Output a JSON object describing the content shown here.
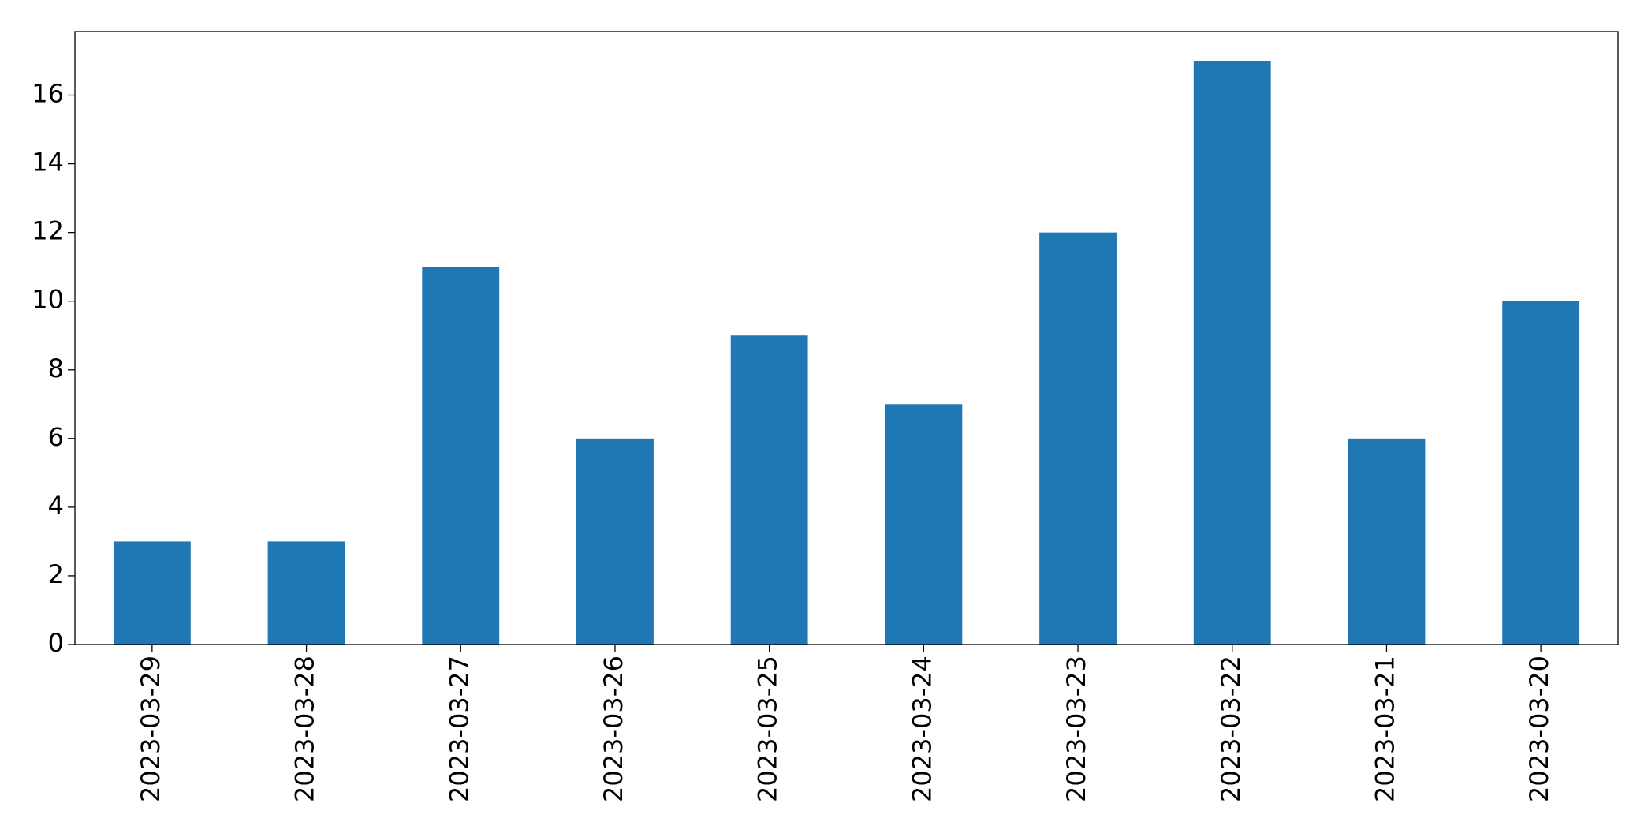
{
  "chart_data": {
    "type": "bar",
    "categories": [
      "2023-03-29",
      "2023-03-28",
      "2023-03-27",
      "2023-03-26",
      "2023-03-25",
      "2023-03-24",
      "2023-03-23",
      "2023-03-22",
      "2023-03-21",
      "2023-03-20"
    ],
    "values": [
      3,
      3,
      11,
      6,
      9,
      7,
      12,
      17,
      6,
      10
    ],
    "color": "#1f77b4",
    "ylim": [
      0,
      17.85
    ],
    "yticks": [
      0,
      2,
      4,
      6,
      8,
      10,
      12,
      14,
      16
    ],
    "grid": false
  }
}
